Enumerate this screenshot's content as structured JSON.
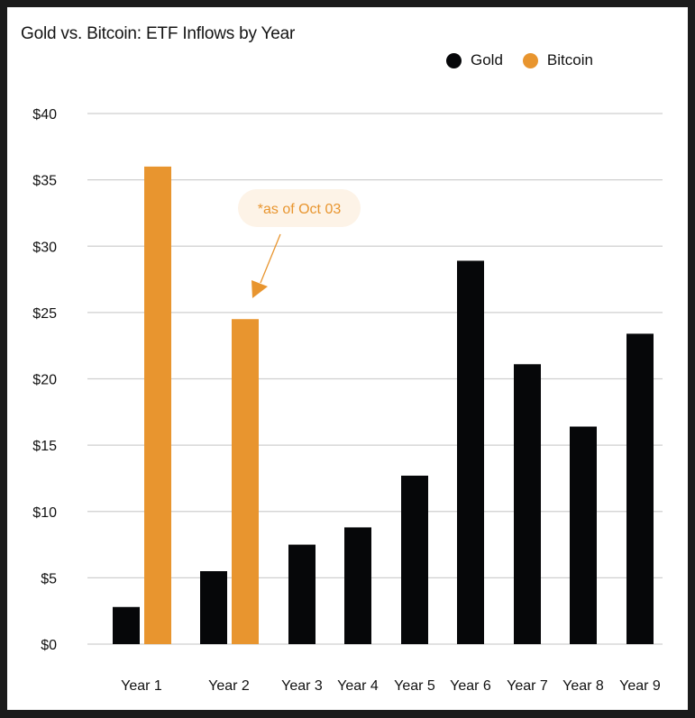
{
  "chart_data": {
    "type": "bar",
    "title": "Gold vs. Bitcoin: ETF Inflows by Year",
    "xlabel": "",
    "ylabel": "",
    "categories": [
      "Year 1",
      "Year 2",
      "Year 3",
      "Year 4",
      "Year 5",
      "Year 6",
      "Year 7",
      "Year 8",
      "Year 9"
    ],
    "series": [
      {
        "name": "Gold",
        "color": "#060709",
        "values": [
          2.8,
          5.5,
          7.5,
          8.8,
          12.7,
          28.9,
          21.1,
          16.4,
          23.4
        ]
      },
      {
        "name": "Bitcoin",
        "color": "#e8952f",
        "values": [
          36.0,
          24.5,
          null,
          null,
          null,
          null,
          null,
          null,
          null
        ]
      }
    ],
    "ylim": [
      0,
      40
    ],
    "yticks": [
      0,
      5,
      10,
      15,
      20,
      25,
      30,
      35,
      40
    ],
    "ytick_labels": [
      "$0",
      "$5",
      "$10",
      "$15",
      "$20",
      "$25",
      "$30",
      "$35",
      "$40"
    ],
    "grid": true,
    "legend_position": "top-right",
    "annotation": {
      "text": "*as of Oct 03",
      "target_category": "Year 2",
      "target_series": "Bitcoin",
      "color": "#e8952f",
      "background": "#fdf3e7"
    }
  }
}
